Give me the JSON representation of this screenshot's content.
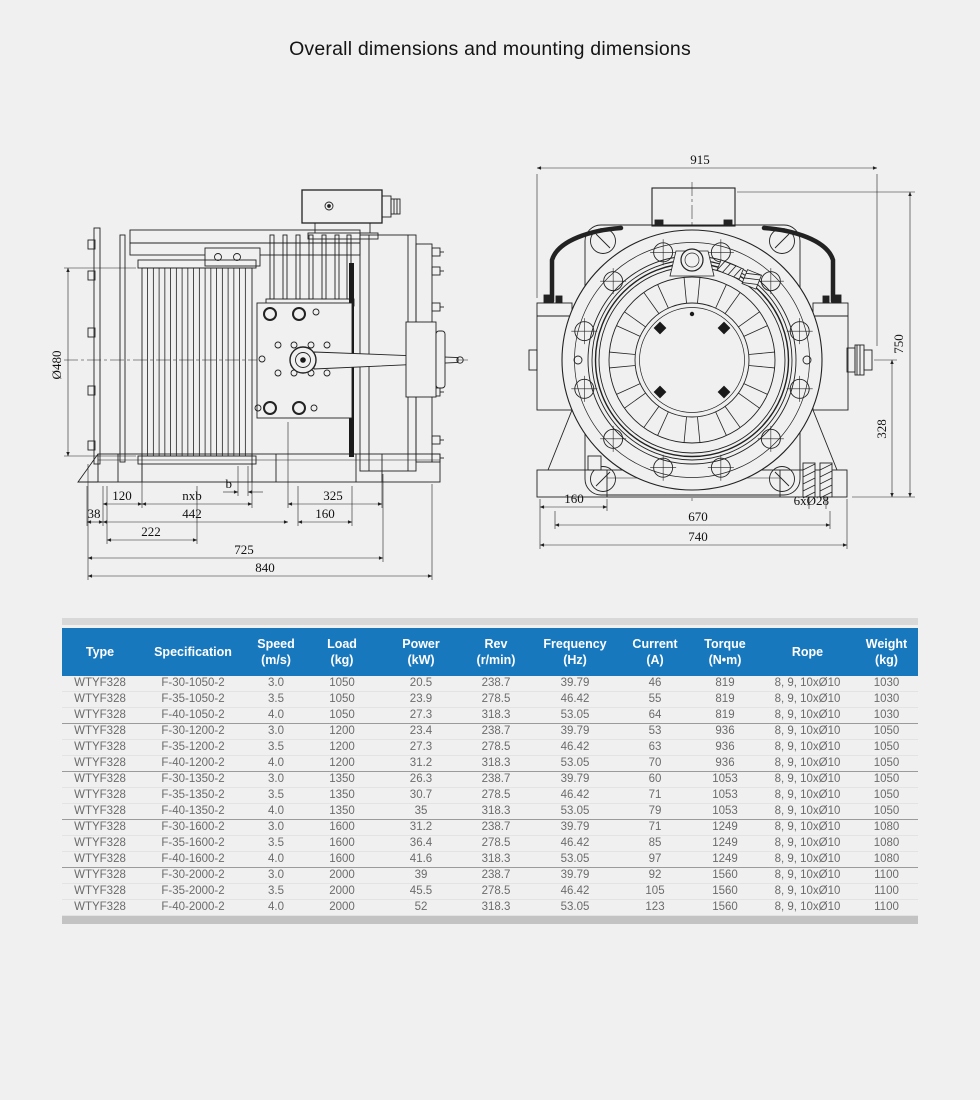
{
  "page": {
    "title": "Overall dimensions and mounting dimensions"
  },
  "colors": {
    "page_bg": "#F0F0F0",
    "table_header_bg": "#1878BE",
    "table_header_text": "#FFFFFF",
    "table_text": "#6B6B6B",
    "drawing_line": "#222222",
    "strip_top": "#D8D8D8",
    "strip_bottom": "#C3C3C3"
  },
  "side_view": {
    "dia": "Ø480",
    "b": "b",
    "nxb": "nxb",
    "d120": "120",
    "d38": "38",
    "d442": "442",
    "d325": "325",
    "d160": "160",
    "d222": "222",
    "d725": "725",
    "d840": "840"
  },
  "front_view": {
    "d915": "915",
    "d750": "750",
    "d328": "328",
    "d160": "160",
    "d670": "670",
    "d740": "740",
    "bolt_holes": "6xØ28"
  },
  "table": {
    "headers": [
      {
        "l1": "Type",
        "l2": ""
      },
      {
        "l1": "Specification",
        "l2": ""
      },
      {
        "l1": "Speed",
        "l2": "(m/s)"
      },
      {
        "l1": "Load",
        "l2": "(kg)"
      },
      {
        "l1": "Power",
        "l2": "(kW)"
      },
      {
        "l1": "Rev",
        "l2": "(r/min)"
      },
      {
        "l1": "Frequency",
        "l2": "(Hz)"
      },
      {
        "l1": "Current",
        "l2": "(A)"
      },
      {
        "l1": "Torque",
        "l2": "(N•m)"
      },
      {
        "l1": "Rope",
        "l2": ""
      },
      {
        "l1": "Weight",
        "l2": "(kg)"
      }
    ],
    "rows": [
      [
        "WTYF328",
        "F-30-1050-2",
        "3.0",
        "1050",
        "20.5",
        "238.7",
        "39.79",
        "46",
        "819",
        "8, 9, 10xØ10",
        "1030"
      ],
      [
        "WTYF328",
        "F-35-1050-2",
        "3.5",
        "1050",
        "23.9",
        "278.5",
        "46.42",
        "55",
        "819",
        "8, 9, 10xØ10",
        "1030"
      ],
      [
        "WTYF328",
        "F-40-1050-2",
        "4.0",
        "1050",
        "27.3",
        "318.3",
        "53.05",
        "64",
        "819",
        "8, 9, 10xØ10",
        "1030"
      ],
      [
        "WTYF328",
        "F-30-1200-2",
        "3.0",
        "1200",
        "23.4",
        "238.7",
        "39.79",
        "53",
        "936",
        "8, 9, 10xØ10",
        "1050"
      ],
      [
        "WTYF328",
        "F-35-1200-2",
        "3.5",
        "1200",
        "27.3",
        "278.5",
        "46.42",
        "63",
        "936",
        "8, 9, 10xØ10",
        "1050"
      ],
      [
        "WTYF328",
        "F-40-1200-2",
        "4.0",
        "1200",
        "31.2",
        "318.3",
        "53.05",
        "70",
        "936",
        "8, 9, 10xØ10",
        "1050"
      ],
      [
        "WTYF328",
        "F-30-1350-2",
        "3.0",
        "1350",
        "26.3",
        "238.7",
        "39.79",
        "60",
        "1053",
        "8, 9, 10xØ10",
        "1050"
      ],
      [
        "WTYF328",
        "F-35-1350-2",
        "3.5",
        "1350",
        "30.7",
        "278.5",
        "46.42",
        "71",
        "1053",
        "8, 9, 10xØ10",
        "1050"
      ],
      [
        "WTYF328",
        "F-40-1350-2",
        "4.0",
        "1350",
        "35",
        "318.3",
        "53.05",
        "79",
        "1053",
        "8, 9, 10xØ10",
        "1050"
      ],
      [
        "WTYF328",
        "F-30-1600-2",
        "3.0",
        "1600",
        "31.2",
        "238.7",
        "39.79",
        "71",
        "1249",
        "8, 9, 10xØ10",
        "1080"
      ],
      [
        "WTYF328",
        "F-35-1600-2",
        "3.5",
        "1600",
        "36.4",
        "278.5",
        "46.42",
        "85",
        "1249",
        "8, 9, 10xØ10",
        "1080"
      ],
      [
        "WTYF328",
        "F-40-1600-2",
        "4.0",
        "1600",
        "41.6",
        "318.3",
        "53.05",
        "97",
        "1249",
        "8, 9, 10xØ10",
        "1080"
      ],
      [
        "WTYF328",
        "F-30-2000-2",
        "3.0",
        "2000",
        "39",
        "238.7",
        "39.79",
        "92",
        "1560",
        "8, 9, 10xØ10",
        "1100"
      ],
      [
        "WTYF328",
        "F-35-2000-2",
        "3.5",
        "2000",
        "45.5",
        "278.5",
        "46.42",
        "105",
        "1560",
        "8, 9, 10xØ10",
        "1100"
      ],
      [
        "WTYF328",
        "F-40-2000-2",
        "4.0",
        "2000",
        "52",
        "318.3",
        "53.05",
        "123",
        "1560",
        "8, 9, 10xØ10",
        "1100"
      ]
    ]
  }
}
